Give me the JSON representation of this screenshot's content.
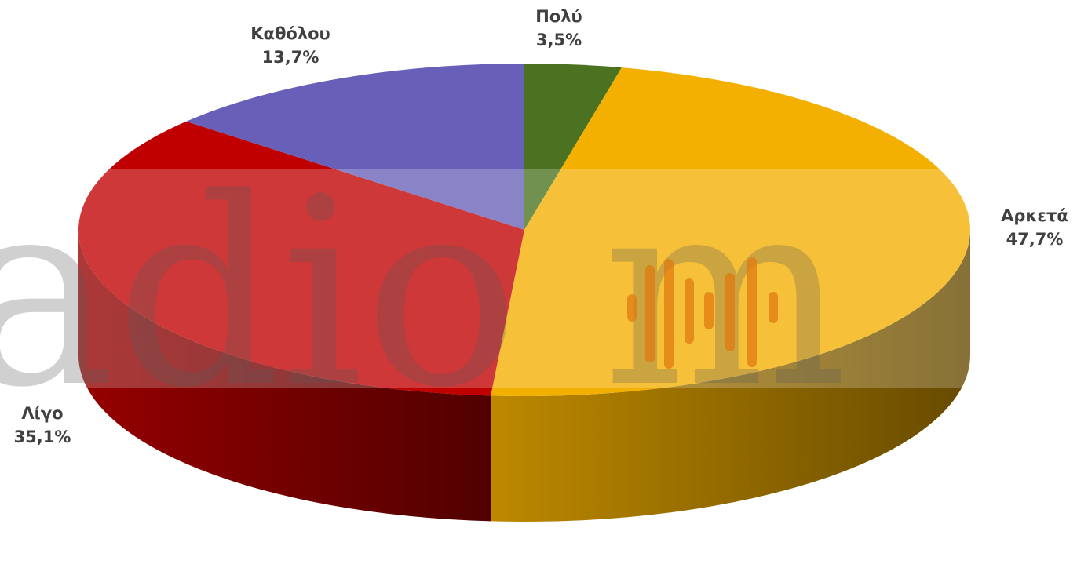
{
  "chart_data": {
    "type": "pie",
    "three_d": true,
    "start_angle_deg": 90,
    "direction": "clockwise",
    "slices": [
      {
        "label": "Πολύ",
        "value": 3.5,
        "value_text": "3,5%",
        "color": "#4a7220"
      },
      {
        "label": "Αρκετά",
        "value": 47.7,
        "value_text": "47,7%",
        "color": "#f4b000"
      },
      {
        "label": "Λίγο",
        "value": 35.1,
        "value_text": "35,1%",
        "color": "#c00000"
      },
      {
        "label": "Καθόλου",
        "value": 13.7,
        "value_text": "13,7%",
        "color": "#6860b8"
      }
    ],
    "legend": "none"
  },
  "watermark": {
    "text": "adio m",
    "band_color": "#ffffff"
  }
}
